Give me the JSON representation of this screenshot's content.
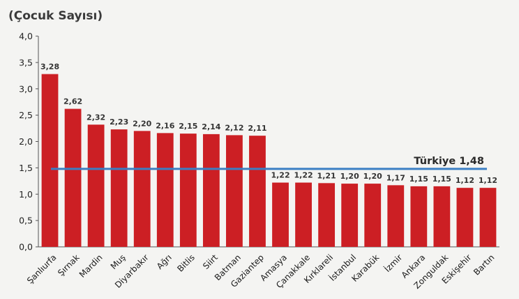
{
  "chart_data": {
    "type": "bar",
    "unit_label": "(Çocuk Sayısı)",
    "categories": [
      "Şanlıurfa",
      "Şırnak",
      "Mardin",
      "Muş",
      "Diyarbakır",
      "Ağrı",
      "Bitlis",
      "Siirt",
      "Batman",
      "Gaziantep",
      "Amasya",
      "Çanakkale",
      "Kırklareli",
      "İstanbul",
      "Karabük",
      "İzmir",
      "Ankara",
      "Zonguldak",
      "Eskişehir",
      "Bartın"
    ],
    "values": [
      3.28,
      2.62,
      2.32,
      2.23,
      2.2,
      2.16,
      2.15,
      2.14,
      2.12,
      2.11,
      1.22,
      1.22,
      1.21,
      1.2,
      1.2,
      1.17,
      1.15,
      1.15,
      1.12,
      1.12
    ],
    "value_labels": [
      "3,28",
      "2,62",
      "2,32",
      "2,23",
      "2,20",
      "2,16",
      "2,15",
      "2,14",
      "2,12",
      "2,11",
      "1,22",
      "1,22",
      "1,21",
      "1,20",
      "1,20",
      "1,17",
      "1,15",
      "1,15",
      "1,12",
      "1,12"
    ],
    "ylim": [
      0,
      4
    ],
    "yticks": [
      0,
      0.5,
      1,
      1.5,
      2,
      2.5,
      3,
      3.5,
      4
    ],
    "ytick_labels": [
      "0,0",
      "0,5",
      "1,0",
      "1,5",
      "2,0",
      "2,5",
      "3,0",
      "3,5",
      "4,0"
    ],
    "reference_line": {
      "value": 1.48,
      "label": "Türkiye 1,48",
      "color": "#3b7fc4"
    },
    "bar_color": "#cc1f24",
    "grid": false
  }
}
